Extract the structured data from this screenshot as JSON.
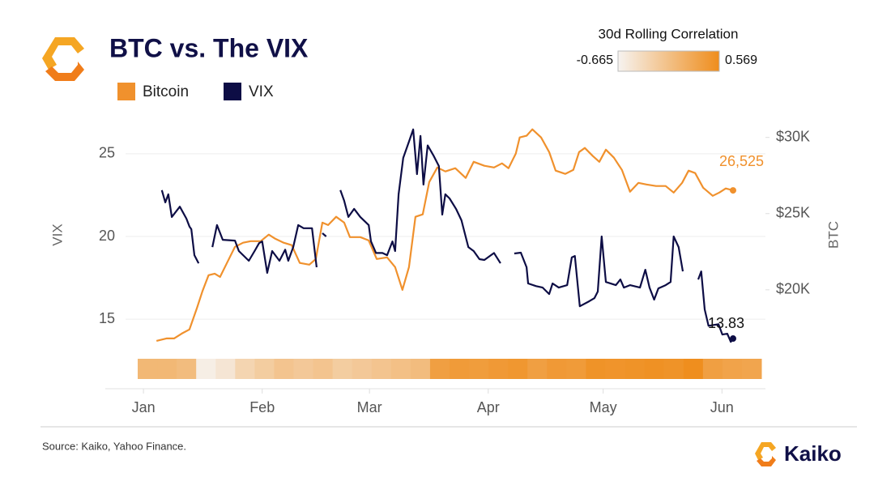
{
  "chart_data": {
    "type": "line",
    "title": "BTC vs. The VIX",
    "source": "Source: Kaiko, Yahoo Finance.",
    "brand": "Kaiko",
    "ylabel": "VIX",
    "y2label": "BTC",
    "xlim": [
      -0.5,
      162.3
    ],
    "xticks": [
      {
        "value": 1,
        "label": "Jan"
      },
      {
        "value": 32,
        "label": "Feb"
      },
      {
        "value": 60,
        "label": "Mar"
      },
      {
        "value": 91,
        "label": "Apr"
      },
      {
        "value": 121,
        "label": "May"
      },
      {
        "value": 152,
        "label": "Jun"
      }
    ],
    "ylim": [
      13,
      27
    ],
    "yticks": [
      15,
      20,
      25
    ],
    "y2lim": [
      15900,
      31100
    ],
    "y2ticks": [
      {
        "value": 20000,
        "label": "$20K"
      },
      {
        "value": 25000,
        "label": "$25K"
      },
      {
        "value": 30000,
        "label": "$30K"
      }
    ],
    "grid": true,
    "series": [
      {
        "name": "Bitcoin",
        "color": "#f0912d",
        "axis": "y2",
        "end_label": "26,525",
        "x": [
          4.4,
          7,
          9,
          11,
          13,
          15,
          16.4,
          18,
          19.6,
          21,
          22.8,
          24.9,
          27,
          29,
          31.6,
          33.7,
          35.4,
          37.6,
          39.7,
          41.8,
          44.3,
          46,
          47.7,
          49.2,
          51.3,
          53.4,
          54.9,
          57.6,
          59.8,
          61.9,
          64.6,
          66.7,
          68.6,
          70.3,
          72,
          73.9,
          75.6,
          77.7,
          79.8,
          82.4,
          85.1,
          87.2,
          90,
          92.5,
          94.6,
          96.3,
          98.2,
          99.2,
          101,
          102.5,
          104.8,
          106.9,
          108.6,
          111.1,
          113.2,
          114.7,
          116.2,
          118.3,
          120,
          121.7,
          123.8,
          125.9,
          128,
          130.2,
          132.3,
          134.8,
          137.3,
          139.4,
          141.6,
          143.3,
          145,
          147.1,
          149.6,
          151.3,
          153,
          154.9
        ],
        "values": [
          16650,
          16810,
          16810,
          17130,
          17400,
          18830,
          19900,
          20960,
          21060,
          20850,
          21760,
          22820,
          23090,
          23190,
          23190,
          23620,
          23350,
          23090,
          22930,
          21760,
          21650,
          22020,
          24410,
          24250,
          24790,
          24410,
          23460,
          23460,
          23240,
          22020,
          22130,
          21490,
          20000,
          21490,
          24790,
          24950,
          27070,
          28030,
          27770,
          27980,
          27340,
          28400,
          28140,
          28030,
          28300,
          27980,
          28940,
          30000,
          30110,
          30530,
          30000,
          29040,
          27820,
          27610,
          27870,
          29040,
          29310,
          28780,
          28400,
          29200,
          28670,
          27870,
          26440,
          27020,
          26910,
          26810,
          26810,
          26380,
          27020,
          27820,
          27660,
          26700,
          26170,
          26380,
          26650,
          26525
        ]
      },
      {
        "name": "VIX",
        "color": "#0d0d45",
        "axis": "y",
        "end_label": "13.83",
        "x": [
          5.8,
          6.7,
          7.5,
          8.4,
          10.5,
          12.2,
          13,
          13.5,
          14.3,
          15.4,
          17,
          19,
          20.2,
          21.7,
          24.9,
          25.9,
          28.5,
          30,
          31.2,
          32,
          33.3,
          34.6,
          36.5,
          38,
          38.8,
          40.1,
          41.4,
          42.8,
          45,
          46.2,
          47,
          47.7,
          48.7,
          50,
          52.4,
          53.4,
          54.5,
          56,
          57.6,
          59.8,
          60.4,
          61.7,
          63.4,
          64.6,
          66,
          66.7,
          67.6,
          68.8,
          70.3,
          71.4,
          72.4,
          73.3,
          74.1,
          75.2,
          76.7,
          78.1,
          79,
          79.8,
          80.9,
          82.6,
          84,
          85.8,
          87.2,
          88.7,
          90,
          92.5,
          94.2,
          96,
          97.8,
          99.5,
          101,
          101.4,
          103.5,
          105.2,
          106.9,
          107.8,
          109.4,
          111.6,
          112.8,
          113.6,
          114.9,
          117.3,
          118.7,
          119.6,
          120.6,
          121.7,
          124.3,
          125.5,
          126.4,
          128,
          130.6,
          132,
          133.1,
          134.3,
          135.4,
          137.3,
          138.6,
          139.4,
          140.7,
          141.8,
          144,
          145.8,
          146.6,
          147.5,
          148.5,
          151.1,
          152.1,
          153.4,
          154.3,
          154.9
        ],
        "values": [
          22.8,
          22.06,
          22.55,
          21.18,
          21.8,
          21.08,
          20.6,
          20.44,
          18.87,
          18.38,
          null,
          19.36,
          20.69,
          19.8,
          19.75,
          19.12,
          18.53,
          19.12,
          19.6,
          19.7,
          17.8,
          19.12,
          18.53,
          19.2,
          18.53,
          19.36,
          20.69,
          20.5,
          20.5,
          18.14,
          null,
          20.2,
          20.0,
          null,
          22.8,
          22.16,
          21.18,
          21.67,
          21.18,
          20.69,
          19.7,
          19.0,
          19.0,
          18.87,
          19.7,
          19.12,
          22.55,
          24.75,
          25.73,
          26.47,
          23.77,
          26.08,
          23.14,
          25.5,
          24.9,
          24.26,
          21.32,
          22.55,
          22.3,
          21.67,
          20.98,
          19.36,
          19.12,
          18.63,
          18.58,
          19.0,
          18.38,
          null,
          18.97,
          19.02,
          18.14,
          17.16,
          17.0,
          16.91,
          16.52,
          17.16,
          16.91,
          17.06,
          18.73,
          18.82,
          15.78,
          16.08,
          16.27,
          16.67,
          20.0,
          17.25,
          17.06,
          17.4,
          16.91,
          17.06,
          16.91,
          17.99,
          16.91,
          16.18,
          16.86,
          17.06,
          17.25,
          20.0,
          19.36,
          17.89,
          null,
          17.4,
          17.89,
          15.59,
          14.6,
          14.7,
          14.07,
          14.12,
          13.63,
          13.83
        ]
      }
    ],
    "correlation": {
      "title": "30d Rolling Correlation",
      "min": -0.665,
      "max": 0.569,
      "colors": [
        "#f6f3f0",
        "#ef8d1c"
      ],
      "values": [
        0.05,
        0.05,
        0.0,
        -0.6,
        -0.5,
        -0.3,
        -0.2,
        -0.1,
        -0.15,
        -0.1,
        -0.2,
        -0.15,
        -0.1,
        -0.05,
        0.0,
        0.35,
        0.4,
        0.38,
        0.42,
        0.45,
        0.35,
        0.42,
        0.4,
        0.5,
        0.48,
        0.5,
        0.52,
        0.5,
        0.56,
        0.35,
        0.3,
        0.28
      ]
    }
  }
}
